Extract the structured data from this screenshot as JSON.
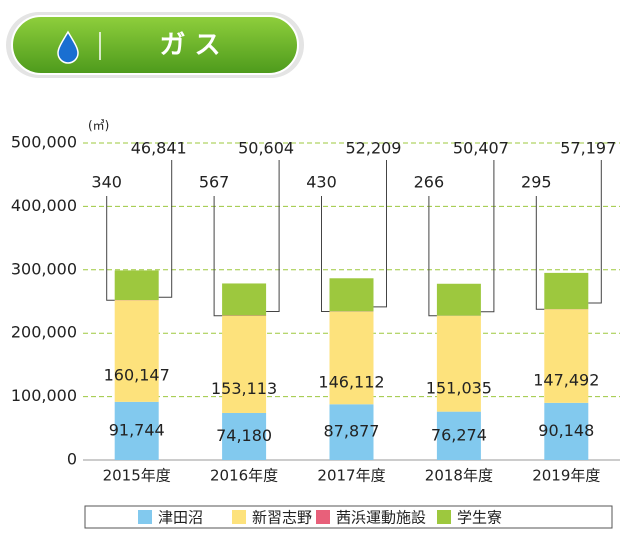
{
  "header": {
    "title": "ガ ス"
  },
  "chart_data": {
    "type": "stacked-bar",
    "unit": "(㎥)",
    "categories": [
      "2015年度",
      "2016年度",
      "2017年度",
      "2018年度",
      "2019年度"
    ],
    "series": [
      {
        "name": "津田沼",
        "color": "#82c9ee",
        "values": [
          91744,
          74180,
          87877,
          76274,
          90148
        ],
        "value_labels": [
          "91,744",
          "74,180",
          "87,877",
          "76,274",
          "90,148"
        ]
      },
      {
        "name": "新習志野",
        "color": "#fde27c",
        "values": [
          160147,
          153113,
          146112,
          151035,
          147492
        ],
        "value_labels": [
          "160,147",
          "153,113",
          "146,112",
          "151,035",
          "147,492"
        ]
      },
      {
        "name": "茜浜運動施設",
        "color": "#e8607a",
        "values": [
          340,
          567,
          430,
          266,
          295
        ]
      },
      {
        "name": "学生寮",
        "color": "#9dc83e",
        "values": [
          46841,
          50604,
          52209,
          50407,
          57197
        ],
        "value_labels": [
          "46,841",
          "50,604",
          "52,209",
          "50,407",
          "57,197"
        ]
      }
    ],
    "ylim": [
      0,
      500000
    ],
    "yticks": [
      0,
      {
        "value": 100000,
        "label": "100,000"
      },
      {
        "value": 200000,
        "label": "200,000"
      },
      {
        "value": 300000,
        "label": "300,000"
      },
      {
        "value": 400000,
        "label": "400,000"
      },
      {
        "value": 500000,
        "label": "500,000"
      }
    ],
    "grid": true,
    "legend": "bottom"
  }
}
